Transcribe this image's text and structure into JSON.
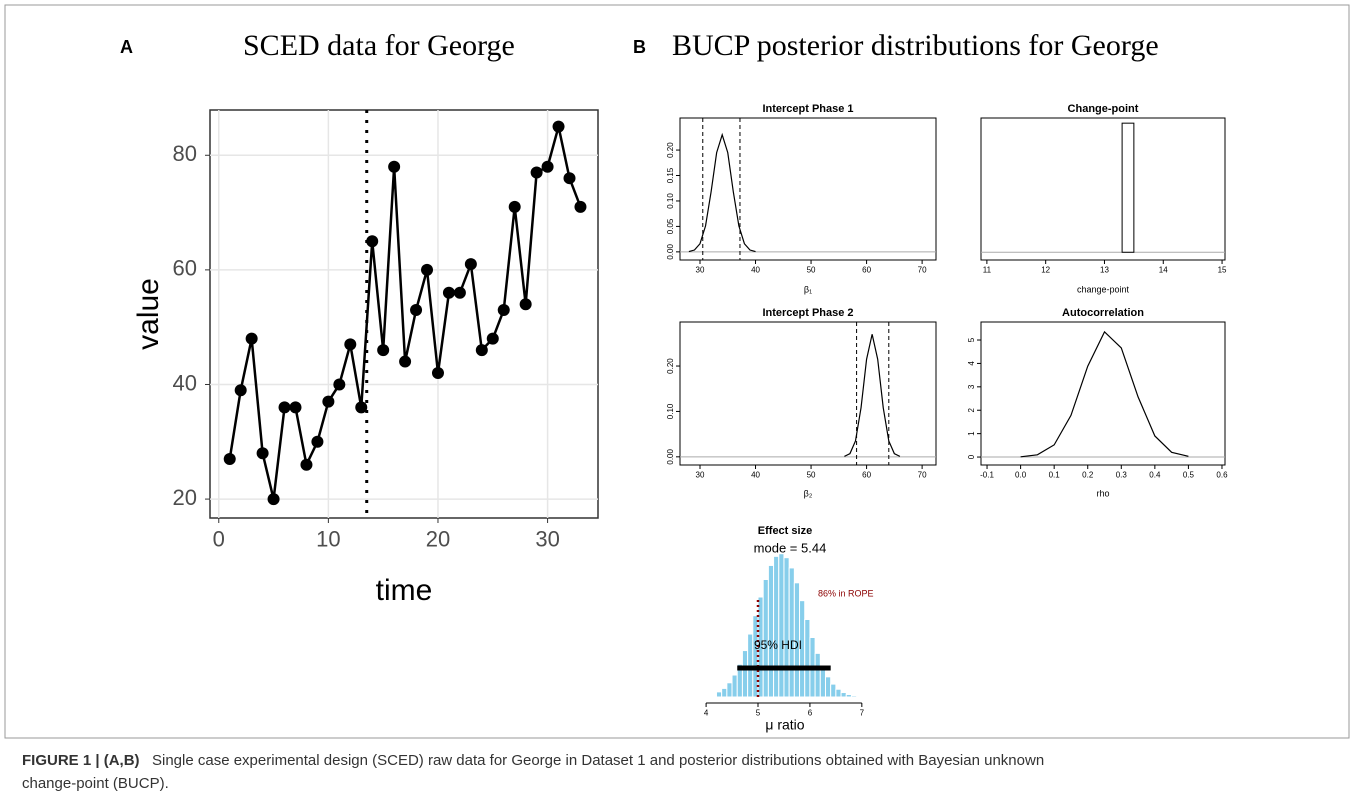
{
  "panels": [
    {
      "letter": "A",
      "title": "SCED data for George"
    },
    {
      "letter": "B",
      "title": "BUCP posterior distributions for George"
    }
  ],
  "caption": {
    "label": "FIGURE 1 | (A,B)",
    "text": "Single case experimental design (SCED) raw data for George in Dataset 1 and posterior distributions obtained with Bayesian unknown change-point (BUCP)."
  },
  "chart_data": [
    {
      "type": "line",
      "x_label": "time",
      "y_label": "value",
      "x": [
        1,
        2,
        3,
        4,
        5,
        6,
        7,
        8,
        9,
        10,
        11,
        12,
        13,
        14,
        15,
        16,
        17,
        18,
        19,
        20,
        21,
        22,
        23,
        24,
        25,
        26,
        27,
        28,
        29,
        30,
        31,
        32,
        33
      ],
      "values": [
        27,
        39,
        48,
        28,
        20,
        36,
        36,
        26,
        30,
        37,
        40,
        47,
        36,
        65,
        46,
        78,
        44,
        53,
        60,
        42,
        56,
        56,
        61,
        46,
        48,
        53,
        71,
        54,
        77,
        78,
        85,
        76,
        71
      ],
      "color": "#000000",
      "markers": true,
      "grid": true,
      "vlines": [
        13.5
      ],
      "xlim": [
        -0.8,
        34.6
      ],
      "ylim": [
        16.7,
        87.9
      ],
      "xticks": [
        0,
        10,
        20,
        30
      ],
      "yticks": [
        20,
        40,
        60,
        80
      ]
    },
    {
      "type": "line",
      "title": "Intercept Phase 1",
      "x_label": "β₁",
      "x": [
        28,
        29,
        30,
        31,
        32,
        33,
        34,
        35,
        36,
        37,
        38,
        39,
        40
      ],
      "values": [
        0.0006,
        0.0036,
        0.016,
        0.051,
        0.118,
        0.195,
        0.23,
        0.195,
        0.118,
        0.051,
        0.016,
        0.0036,
        0.0006
      ],
      "color": "#000000",
      "vlines": [
        30.5,
        37.2
      ],
      "baseline": 0,
      "xlim": [
        26.4,
        72.5
      ],
      "ylim": [
        -0.016,
        0.263
      ],
      "xticks": [
        30,
        40,
        50,
        60,
        70
      ],
      "yticks": [
        {
          "value": 0,
          "label": "0.00"
        },
        {
          "value": 0.05,
          "label": "0.05"
        },
        {
          "value": 0.1,
          "label": "0.10"
        },
        {
          "value": 0.15,
          "label": "0.15"
        },
        {
          "value": 0.2,
          "label": "0.20"
        }
      ]
    },
    {
      "type": "histogram",
      "title": "Change-point",
      "x_label": "change-point",
      "bins": [
        13.3,
        13.5
      ],
      "values": [
        1
      ],
      "color": "#ffffff",
      "baseline": 0,
      "xlim": [
        10.9,
        15.05
      ],
      "ylim": [
        -0.06,
        1.04
      ],
      "xticks": [
        11,
        12,
        13,
        14,
        15
      ]
    },
    {
      "type": "line",
      "title": "Intercept Phase 2",
      "x_label": "β₂",
      "x": [
        56,
        57,
        58,
        59,
        60,
        61,
        62,
        63,
        64,
        65,
        66
      ],
      "values": [
        0.001,
        0.007,
        0.035,
        0.108,
        0.215,
        0.27,
        0.215,
        0.108,
        0.035,
        0.007,
        0.001
      ],
      "color": "#000000",
      "vlines": [
        58.2,
        64.0
      ],
      "baseline": 0,
      "xlim": [
        26.4,
        72.5
      ],
      "ylim": [
        -0.018,
        0.297
      ],
      "xticks": [
        30,
        40,
        50,
        60,
        70
      ],
      "yticks": [
        {
          "value": 0,
          "label": "0.00"
        },
        {
          "value": 0.1,
          "label": "0.10"
        },
        {
          "value": 0.2,
          "label": "0.20"
        }
      ]
    },
    {
      "type": "line",
      "title": "Autocorrelation",
      "x_label": "rho",
      "x": [
        0,
        0.05,
        0.1,
        0.15,
        0.2,
        0.25,
        0.3,
        0.35,
        0.4,
        0.45,
        0.5
      ],
      "values": [
        0.011,
        0.095,
        0.52,
        1.78,
        3.88,
        5.35,
        4.66,
        2.57,
        0.9,
        0.2,
        0.03
      ],
      "color": "#000000",
      "baseline": 0,
      "xlim": [
        -0.118,
        0.609
      ],
      "ylim": [
        -0.34,
        5.77
      ],
      "xticks": [
        -0.1,
        {
          "value": 0,
          "label": "0.0"
        },
        0.1,
        0.2,
        0.3,
        0.4,
        0.5,
        0.6
      ],
      "yticks": [
        0,
        1,
        2,
        3,
        4,
        5
      ]
    },
    {
      "type": "histogram",
      "title": "Effect size",
      "x_label": "μ ratio",
      "bins": [
        4.2,
        4.3,
        4.4,
        4.5,
        4.6,
        4.7,
        4.8,
        4.9,
        5.0,
        5.1,
        5.2,
        5.3,
        5.4,
        5.5,
        5.6,
        5.7,
        5.8,
        5.9,
        6.0,
        6.1,
        6.2,
        6.3,
        6.4,
        6.5,
        6.6,
        6.7,
        6.8,
        6.9
      ],
      "values": [
        0.031,
        0.052,
        0.086,
        0.133,
        0.198,
        0.281,
        0.381,
        0.492,
        0.605,
        0.711,
        0.796,
        0.851,
        0.867,
        0.843,
        0.781,
        0.691,
        0.583,
        0.469,
        0.36,
        0.264,
        0.184,
        0.122,
        0.078,
        0.047,
        0.027,
        0.015,
        0.008
      ],
      "color": "#87ceeb",
      "mode_label": "mode = 5.44",
      "rope_line": 5.0,
      "rope_label": "86% in ROPE",
      "hdi": [
        4.6,
        6.4
      ],
      "hdi_label": "95% HDI",
      "xlim": [
        3.69,
        7.35
      ],
      "ylim": [
        0,
        0.95
      ],
      "xticks": [
        4,
        5,
        6,
        7
      ]
    }
  ]
}
